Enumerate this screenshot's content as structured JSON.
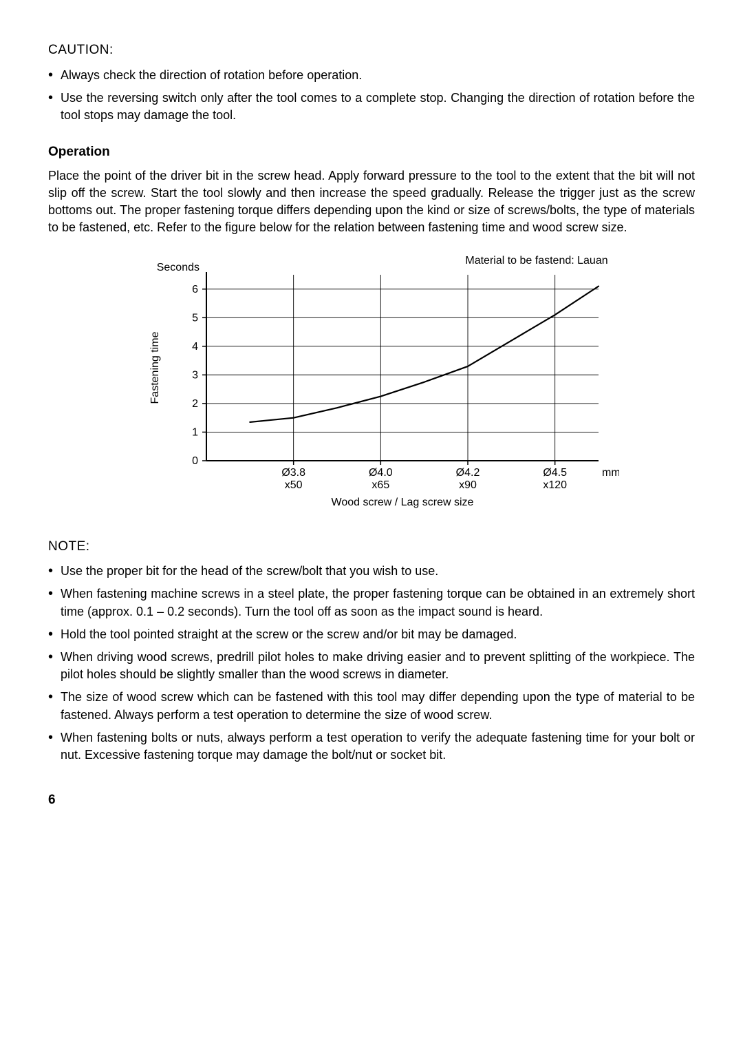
{
  "caution": {
    "heading": "CAUTION:",
    "items": [
      "Always check the direction of rotation before operation.",
      "Use the reversing switch only after the tool comes to a complete stop. Changing the direction of rotation before the tool stops may damage the tool."
    ]
  },
  "operation": {
    "heading": "Operation",
    "body": "Place the point of the driver bit in the screw head. Apply forward pressure to the tool to the extent that the bit will not slip off the screw. Start the tool slowly and then increase the speed gradually. Release the trigger just as the screw bottoms out. The proper fastening torque differs depending upon the kind or size of screws/bolts, the type of materials to be fastened, etc. Refer to the figure below for the relation between fastening time and wood screw size."
  },
  "chart": {
    "type": "line",
    "material_label": "Material to be fastend: Lauan",
    "y_label": "Fastening time",
    "y_unit_label": "Seconds",
    "x_label": "Wood screw / Lag screw size",
    "x_unit": "mm",
    "ylim": [
      0,
      6.5
    ],
    "y_ticks": [
      0,
      1,
      2,
      3,
      4,
      5,
      6
    ],
    "x_positions": [
      0,
      1,
      2,
      3,
      4
    ],
    "x_tick_labels_top": [
      "Ø3.8",
      "Ø4.0",
      "Ø4.2",
      "Ø4.5"
    ],
    "x_tick_labels_bot": [
      "x50",
      "x65",
      "x90",
      "x120"
    ],
    "curve_points": [
      {
        "x": 0.5,
        "y": 1.35
      },
      {
        "x": 1.0,
        "y": 1.5
      },
      {
        "x": 1.5,
        "y": 1.85
      },
      {
        "x": 2.0,
        "y": 2.25
      },
      {
        "x": 2.5,
        "y": 2.75
      },
      {
        "x": 3.0,
        "y": 3.3
      },
      {
        "x": 3.5,
        "y": 4.2
      },
      {
        "x": 4.0,
        "y": 5.1
      },
      {
        "x": 4.5,
        "y": 6.1
      }
    ],
    "axis_color": "#000000",
    "grid_color": "#000000",
    "line_color": "#000000",
    "background_color": "#ffffff",
    "tick_fontsize": 16,
    "label_fontsize": 16,
    "line_width": 2.2,
    "grid_width": 0.9
  },
  "note": {
    "heading": "NOTE:",
    "items": [
      "Use the proper bit for the head of the screw/bolt that you wish to use.",
      "When fastening machine screws in a steel plate, the proper fastening torque can be obtained in an extremely short time (approx. 0.1 – 0.2 seconds). Turn the tool off as soon as the impact sound is heard.",
      "Hold the tool pointed straight at the screw or the screw and/or bit may be damaged.",
      "When driving wood screws, predrill pilot holes to make driving easier and to prevent splitting of the workpiece. The pilot holes should be slightly smaller than the wood screws in diameter.",
      "The size of wood screw which can be fastened with this tool may differ depending upon the type of material to be fastened. Always perform a test operation to determine the size of wood screw.",
      "When fastening bolts or nuts, always perform a test operation to verify the adequate fastening time for your bolt or nut. Excessive fastening torque may damage the bolt/nut or socket bit."
    ]
  },
  "page_number": "6"
}
